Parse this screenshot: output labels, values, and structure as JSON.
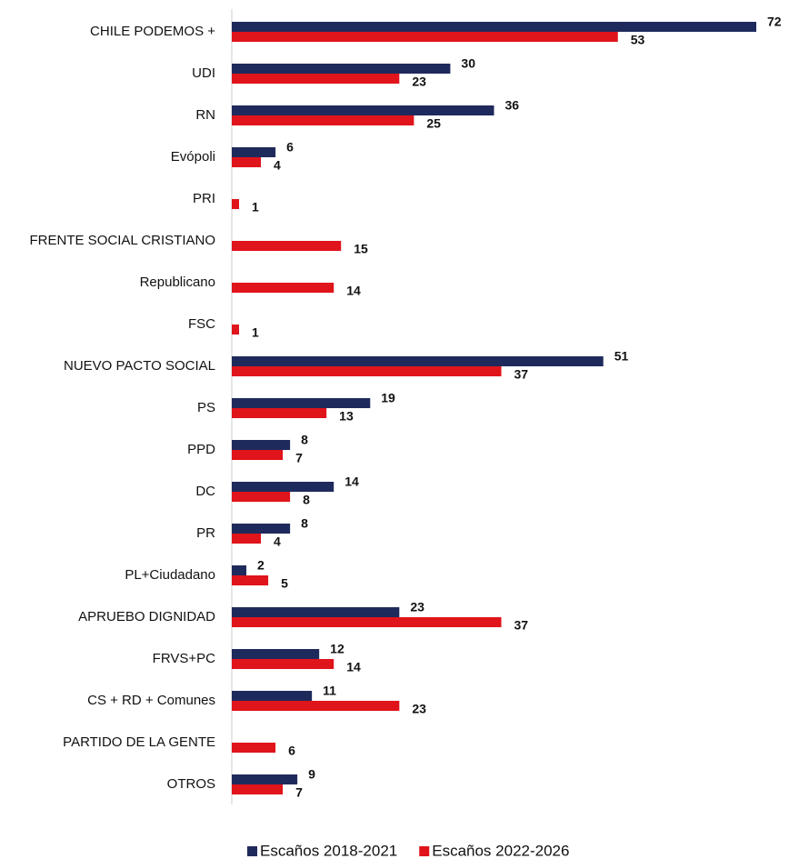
{
  "chart_data": {
    "type": "bar",
    "orientation": "horizontal",
    "categories": [
      "CHILE PODEMOS +",
      "UDI",
      "RN",
      "Evópoli",
      "PRI",
      "FRENTE SOCIAL CRISTIANO",
      "Republicano",
      "FSC",
      "NUEVO PACTO SOCIAL",
      "PS",
      "PPD",
      "DC",
      "PR",
      "PL+Ciudadano",
      "APRUEBO DIGNIDAD",
      "FRVS+PC",
      "CS + RD + Comunes",
      "PARTIDO DE LA GENTE",
      "OTROS"
    ],
    "series": [
      {
        "name": "Escaños 2018-2021",
        "color": "#1f2a5c",
        "values": [
          72,
          30,
          36,
          6,
          null,
          null,
          null,
          null,
          51,
          19,
          8,
          14,
          8,
          2,
          23,
          12,
          11,
          null,
          9
        ]
      },
      {
        "name": "Escaños 2022-2026",
        "color": "#e0141b",
        "values": [
          53,
          23,
          25,
          4,
          1,
          15,
          14,
          1,
          37,
          13,
          7,
          8,
          4,
          5,
          37,
          14,
          23,
          6,
          7
        ]
      }
    ],
    "legend": "bottom"
  }
}
